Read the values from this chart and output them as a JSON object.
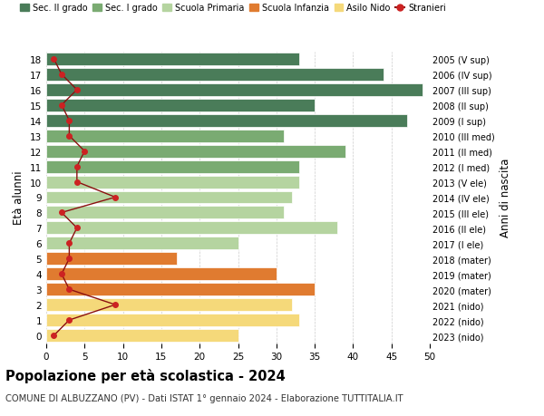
{
  "ages": [
    18,
    17,
    16,
    15,
    14,
    13,
    12,
    11,
    10,
    9,
    8,
    7,
    6,
    5,
    4,
    3,
    2,
    1,
    0
  ],
  "right_labels": [
    "2005 (V sup)",
    "2006 (IV sup)",
    "2007 (III sup)",
    "2008 (II sup)",
    "2009 (I sup)",
    "2010 (III med)",
    "2011 (II med)",
    "2012 (I med)",
    "2013 (V ele)",
    "2014 (IV ele)",
    "2015 (III ele)",
    "2016 (II ele)",
    "2017 (I ele)",
    "2018 (mater)",
    "2019 (mater)",
    "2020 (mater)",
    "2021 (nido)",
    "2022 (nido)",
    "2023 (nido)"
  ],
  "bar_values": [
    33,
    44,
    49,
    35,
    47,
    31,
    39,
    33,
    33,
    32,
    31,
    38,
    25,
    17,
    30,
    35,
    32,
    33,
    25
  ],
  "bar_colors": [
    "#4a7c59",
    "#4a7c59",
    "#4a7c59",
    "#4a7c59",
    "#4a7c59",
    "#7aab72",
    "#7aab72",
    "#7aab72",
    "#b5d4a0",
    "#b5d4a0",
    "#b5d4a0",
    "#b5d4a0",
    "#b5d4a0",
    "#e07b30",
    "#e07b30",
    "#e07b30",
    "#f5d97a",
    "#f5d97a",
    "#f5d97a"
  ],
  "stranieri_values": [
    1,
    2,
    4,
    2,
    3,
    3,
    5,
    4,
    4,
    9,
    2,
    4,
    3,
    3,
    2,
    3,
    9,
    3,
    1
  ],
  "legend_labels": [
    "Sec. II grado",
    "Sec. I grado",
    "Scuola Primaria",
    "Scuola Infanzia",
    "Asilo Nido",
    "Stranieri"
  ],
  "legend_colors": [
    "#4a7c59",
    "#7aab72",
    "#b5d4a0",
    "#e07b30",
    "#f5d97a",
    "#cc2222"
  ],
  "title": "Popolazione per età scolastica - 2024",
  "subtitle": "COMUNE DI ALBUZZANO (PV) - Dati ISTAT 1° gennaio 2024 - Elaborazione TUTTITALIA.IT",
  "ylabel": "Età alunni",
  "ylabel_right": "Anni di nascita",
  "xlim": [
    0,
    50
  ],
  "background_color": "#ffffff",
  "bar_height": 0.82,
  "grid_color": "#cccccc",
  "stranieri_color": "#cc2222",
  "stranieri_line_color": "#8b1010"
}
